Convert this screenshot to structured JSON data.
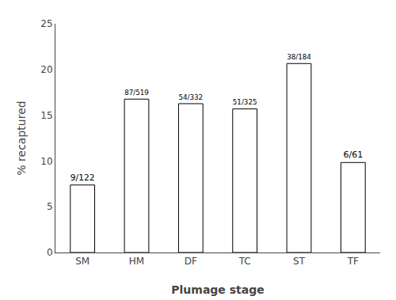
{
  "chart_data": {
    "type": "bar",
    "categories": [
      "SM",
      "HM",
      "DF",
      "TC",
      "ST",
      "TF"
    ],
    "values": [
      7.377049180327869,
      16.762042399228132,
      16.265060240963855,
      15.692307692307692,
      20.652173913043477,
      9.836065573770492
    ],
    "value_labels": [
      "9/122",
      "87/519",
      "54/332",
      "51/325",
      "38/184",
      "6/61"
    ],
    "xlabel": "Plumage stage",
    "ylabel": "% recaptured",
    "ylim": [
      0,
      25
    ],
    "yticks": [
      0,
      5,
      10,
      15,
      20,
      25
    ],
    "color": "#ffffff",
    "grid": false
  }
}
